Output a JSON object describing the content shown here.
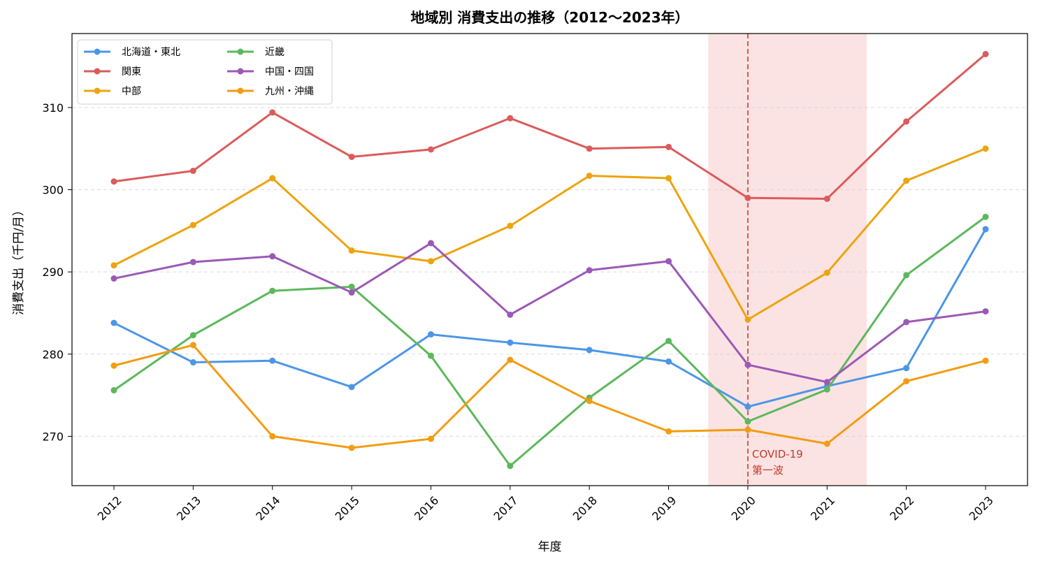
{
  "chart_data": {
    "type": "line",
    "title": "地域別 消費支出の推移（2012〜2023年）",
    "xlabel": "年度",
    "ylabel": "消費支出（千円/月）",
    "x": [
      "2012",
      "2013",
      "2014",
      "2015",
      "2016",
      "2017",
      "2018",
      "2019",
      "2020",
      "2021",
      "2022",
      "2023"
    ],
    "ylim": [
      264,
      319
    ],
    "yticks": [
      270,
      280,
      290,
      300,
      310
    ],
    "grid": "horizontal dashed",
    "legend_position": "top-left",
    "series": [
      {
        "name": "北海道・東北",
        "color": "#4C96E6",
        "values": [
          283.8,
          279.0,
          279.2,
          276.0,
          282.4,
          281.4,
          280.5,
          279.1,
          273.6,
          276.1,
          278.3,
          295.2
        ]
      },
      {
        "name": "関東",
        "color": "#DC5B5B",
        "values": [
          301.0,
          302.3,
          309.4,
          304.0,
          304.9,
          308.7,
          305.0,
          305.2,
          299.0,
          298.9,
          308.3,
          316.5
        ]
      },
      {
        "name": "中部",
        "color": "#EDA40E",
        "values": [
          290.8,
          295.7,
          301.4,
          292.6,
          291.3,
          295.6,
          301.7,
          301.4,
          284.2,
          289.9,
          301.1,
          305.0
        ]
      },
      {
        "name": "近畿",
        "color": "#5CB85C",
        "values": [
          275.6,
          282.3,
          287.7,
          288.2,
          279.8,
          266.4,
          274.7,
          281.6,
          271.8,
          275.7,
          289.6,
          296.7
        ]
      },
      {
        "name": "中国・四国",
        "color": "#9B59B6",
        "values": [
          289.2,
          291.2,
          291.9,
          287.5,
          293.5,
          284.8,
          290.2,
          291.3,
          278.7,
          276.6,
          283.9,
          285.2
        ]
      },
      {
        "name": "九州・沖縄",
        "color": "#F39C12",
        "values": [
          278.6,
          281.1,
          270.0,
          268.6,
          269.7,
          279.3,
          274.3,
          270.6,
          270.8,
          269.1,
          276.7,
          279.2
        ]
      }
    ],
    "highlight_span": {
      "x_start": 2019.5,
      "x_end": 2021.5,
      "color": "#F08080"
    },
    "annotation": {
      "x": "2020",
      "line1": "COVID-19",
      "line2": "第一波",
      "color": "#C0392B"
    }
  }
}
